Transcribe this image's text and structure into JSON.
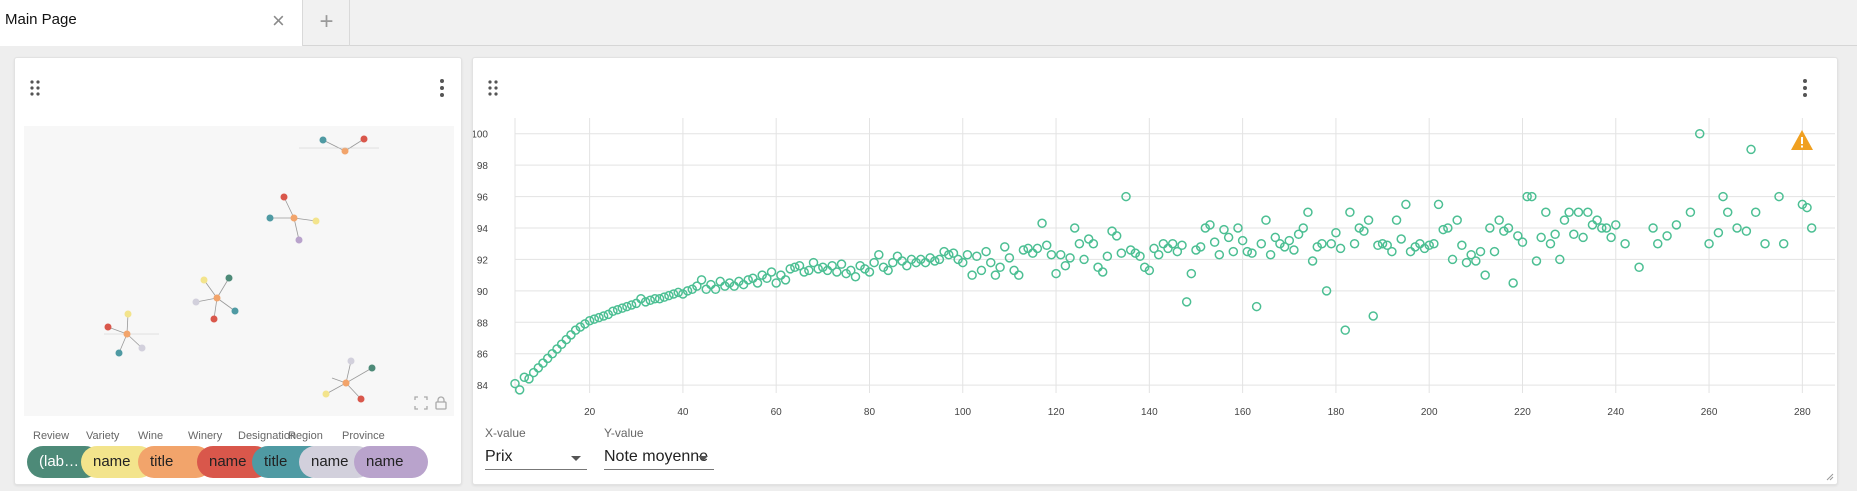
{
  "tabs": {
    "active_title": "Main Page",
    "close_glyph": "×",
    "add_glyph": "+"
  },
  "graph_panel": {
    "legend": [
      {
        "label": "Review",
        "value": "(lab…",
        "color": "#4d8a78"
      },
      {
        "label": "Variety",
        "value": "name",
        "color": "#f3e48c"
      },
      {
        "label": "Wine",
        "value": "title",
        "color": "#f2a46b"
      },
      {
        "label": "Winery",
        "value": "name",
        "color": "#d9574b"
      },
      {
        "label": "Designation",
        "value": "title",
        "color": "#4f9aa3"
      },
      {
        "label": "Region",
        "value": "name",
        "color": "#d2d0dc"
      },
      {
        "label": "Province",
        "value": "name",
        "color": "#b9a3cc"
      }
    ],
    "icons": [
      "fit-screen-icon",
      "lock-icon"
    ]
  },
  "chart_panel": {
    "x_select": {
      "label": "X-value",
      "value": "Prix"
    },
    "y_select": {
      "label": "Y-value",
      "value": "Note moyenne"
    },
    "point_color": "#4cbf93",
    "warning_color": "#f0a020"
  },
  "chart_data": {
    "type": "scatter",
    "title": "",
    "xlabel": "",
    "ylabel": "",
    "xlim": [
      4,
      287
    ],
    "ylim": [
      83.5,
      101
    ],
    "xticks": [
      20,
      40,
      60,
      80,
      100,
      120,
      140,
      160,
      180,
      200,
      220,
      240,
      260,
      280
    ],
    "yticks": [
      84,
      86,
      88,
      90,
      92,
      94,
      96,
      98,
      100
    ],
    "grid": true,
    "series": [
      {
        "points": [
          [
            4,
            84.1
          ],
          [
            5,
            83.7
          ],
          [
            6,
            84.5
          ],
          [
            7,
            84.4
          ],
          [
            8,
            84.8
          ],
          [
            9,
            85.1
          ],
          [
            10,
            85.4
          ],
          [
            11,
            85.7
          ],
          [
            12,
            86.0
          ],
          [
            13,
            86.3
          ],
          [
            14,
            86.6
          ],
          [
            15,
            86.9
          ],
          [
            16,
            87.2
          ],
          [
            17,
            87.5
          ],
          [
            18,
            87.7
          ],
          [
            19,
            87.9
          ],
          [
            20,
            88.1
          ],
          [
            21,
            88.2
          ],
          [
            22,
            88.3
          ],
          [
            23,
            88.4
          ],
          [
            24,
            88.5
          ],
          [
            25,
            88.7
          ],
          [
            26,
            88.8
          ],
          [
            27,
            88.9
          ],
          [
            28,
            89.0
          ],
          [
            29,
            89.1
          ],
          [
            30,
            89.2
          ],
          [
            31,
            89.5
          ],
          [
            32,
            89.3
          ],
          [
            33,
            89.4
          ],
          [
            34,
            89.5
          ],
          [
            35,
            89.5
          ],
          [
            36,
            89.6
          ],
          [
            37,
            89.7
          ],
          [
            38,
            89.8
          ],
          [
            39,
            89.9
          ],
          [
            40,
            89.8
          ],
          [
            41,
            90.0
          ],
          [
            42,
            90.1
          ],
          [
            43,
            90.3
          ],
          [
            44,
            90.7
          ],
          [
            45,
            90.1
          ],
          [
            46,
            90.4
          ],
          [
            47,
            90.1
          ],
          [
            48,
            90.6
          ],
          [
            49,
            90.3
          ],
          [
            50,
            90.5
          ],
          [
            51,
            90.3
          ],
          [
            52,
            90.6
          ],
          [
            53,
            90.4
          ],
          [
            54,
            90.7
          ],
          [
            55,
            90.8
          ],
          [
            56,
            90.5
          ],
          [
            57,
            91.0
          ],
          [
            58,
            90.8
          ],
          [
            59,
            91.2
          ],
          [
            60,
            90.5
          ],
          [
            61,
            91.0
          ],
          [
            62,
            90.7
          ],
          [
            63,
            91.4
          ],
          [
            64,
            91.5
          ],
          [
            65,
            91.6
          ],
          [
            66,
            91.2
          ],
          [
            67,
            91.3
          ],
          [
            68,
            91.8
          ],
          [
            69,
            91.4
          ],
          [
            70,
            91.5
          ],
          [
            71,
            91.3
          ],
          [
            72,
            91.6
          ],
          [
            73,
            91.2
          ],
          [
            74,
            91.7
          ],
          [
            75,
            91.1
          ],
          [
            76,
            91.3
          ],
          [
            77,
            90.9
          ],
          [
            78,
            91.6
          ],
          [
            79,
            91.4
          ],
          [
            80,
            91.2
          ],
          [
            81,
            91.8
          ],
          [
            82,
            92.3
          ],
          [
            83,
            91.5
          ],
          [
            84,
            91.3
          ],
          [
            85,
            91.8
          ],
          [
            86,
            92.2
          ],
          [
            87,
            91.9
          ],
          [
            88,
            91.6
          ],
          [
            89,
            92.0
          ],
          [
            90,
            91.8
          ],
          [
            91,
            92.0
          ],
          [
            92,
            91.8
          ],
          [
            93,
            92.1
          ],
          [
            94,
            91.9
          ],
          [
            95,
            92.0
          ],
          [
            96,
            92.5
          ],
          [
            97,
            92.3
          ],
          [
            98,
            92.4
          ],
          [
            99,
            92.0
          ],
          [
            100,
            91.8
          ],
          [
            101,
            92.3
          ],
          [
            102,
            91.0
          ],
          [
            103,
            92.2
          ],
          [
            104,
            91.3
          ],
          [
            105,
            92.5
          ],
          [
            106,
            91.8
          ],
          [
            107,
            91.0
          ],
          [
            108,
            91.5
          ],
          [
            109,
            92.8
          ],
          [
            110,
            92.1
          ],
          [
            111,
            91.3
          ],
          [
            112,
            91.0
          ],
          [
            113,
            92.6
          ],
          [
            114,
            92.7
          ],
          [
            115,
            92.4
          ],
          [
            116,
            92.7
          ],
          [
            117,
            94.3
          ],
          [
            118,
            92.9
          ],
          [
            119,
            92.3
          ],
          [
            120,
            91.1
          ],
          [
            121,
            92.3
          ],
          [
            122,
            91.6
          ],
          [
            123,
            92.1
          ],
          [
            124,
            94.0
          ],
          [
            125,
            93.0
          ],
          [
            126,
            92.0
          ],
          [
            127,
            93.3
          ],
          [
            128,
            93.0
          ],
          [
            129,
            91.5
          ],
          [
            130,
            91.2
          ],
          [
            131,
            92.2
          ],
          [
            132,
            93.8
          ],
          [
            133,
            93.5
          ],
          [
            134,
            92.4
          ],
          [
            135,
            96.0
          ],
          [
            136,
            92.6
          ],
          [
            137,
            92.4
          ],
          [
            138,
            92.2
          ],
          [
            139,
            91.5
          ],
          [
            140,
            91.3
          ],
          [
            141,
            92.7
          ],
          [
            142,
            92.3
          ],
          [
            143,
            93.0
          ],
          [
            144,
            92.7
          ],
          [
            145,
            93.0
          ],
          [
            146,
            92.5
          ],
          [
            147,
            92.9
          ],
          [
            148,
            89.3
          ],
          [
            149,
            91.1
          ],
          [
            150,
            92.6
          ],
          [
            151,
            92.8
          ],
          [
            152,
            94.0
          ],
          [
            153,
            94.2
          ],
          [
            154,
            93.1
          ],
          [
            155,
            92.3
          ],
          [
            156,
            93.9
          ],
          [
            157,
            93.4
          ],
          [
            158,
            92.5
          ],
          [
            159,
            94.0
          ],
          [
            160,
            93.2
          ],
          [
            161,
            92.5
          ],
          [
            162,
            92.4
          ],
          [
            163,
            89.0
          ],
          [
            164,
            93.0
          ],
          [
            165,
            94.5
          ],
          [
            166,
            92.3
          ],
          [
            167,
            93.4
          ],
          [
            168,
            93.0
          ],
          [
            169,
            92.8
          ],
          [
            170,
            93.2
          ],
          [
            171,
            92.6
          ],
          [
            172,
            93.6
          ],
          [
            173,
            94.0
          ],
          [
            174,
            95.0
          ],
          [
            175,
            91.9
          ],
          [
            176,
            92.8
          ],
          [
            177,
            93.0
          ],
          [
            178,
            90.0
          ],
          [
            179,
            93.0
          ],
          [
            180,
            93.7
          ],
          [
            181,
            92.7
          ],
          [
            182,
            87.5
          ],
          [
            183,
            95.0
          ],
          [
            184,
            93.0
          ],
          [
            185,
            94.0
          ],
          [
            186,
            93.8
          ],
          [
            187,
            94.5
          ],
          [
            188,
            88.4
          ],
          [
            189,
            92.9
          ],
          [
            190,
            93.0
          ],
          [
            191,
            92.9
          ],
          [
            192,
            92.5
          ],
          [
            193,
            94.5
          ],
          [
            194,
            93.3
          ],
          [
            195,
            95.5
          ],
          [
            196,
            92.5
          ],
          [
            197,
            92.8
          ],
          [
            198,
            93.0
          ],
          [
            199,
            92.7
          ],
          [
            200,
            92.9
          ],
          [
            201,
            93.0
          ],
          [
            202,
            95.5
          ],
          [
            203,
            93.9
          ],
          [
            204,
            94.0
          ],
          [
            205,
            92.0
          ],
          [
            206,
            94.5
          ],
          [
            207,
            92.9
          ],
          [
            208,
            91.8
          ],
          [
            209,
            92.3
          ],
          [
            210,
            91.9
          ],
          [
            211,
            92.5
          ],
          [
            212,
            91.0
          ],
          [
            213,
            94.0
          ],
          [
            214,
            92.5
          ],
          [
            215,
            94.5
          ],
          [
            216,
            93.8
          ],
          [
            217,
            94.0
          ],
          [
            218,
            90.5
          ],
          [
            219,
            93.5
          ],
          [
            220,
            93.1
          ],
          [
            221,
            96.0
          ],
          [
            222,
            96.0
          ],
          [
            223,
            91.9
          ],
          [
            224,
            93.4
          ],
          [
            225,
            95.0
          ],
          [
            226,
            93.0
          ],
          [
            227,
            93.6
          ],
          [
            228,
            92.0
          ],
          [
            229,
            94.5
          ],
          [
            230,
            95.0
          ],
          [
            231,
            93.6
          ],
          [
            232,
            95.0
          ],
          [
            233,
            93.4
          ],
          [
            234,
            95.0
          ],
          [
            235,
            94.2
          ],
          [
            236,
            94.5
          ],
          [
            237,
            94.0
          ],
          [
            238,
            94.0
          ],
          [
            239,
            93.4
          ],
          [
            240,
            94.2
          ],
          [
            242,
            93.0
          ],
          [
            245,
            91.5
          ],
          [
            248,
            94.0
          ],
          [
            249,
            93.0
          ],
          [
            251,
            93.5
          ],
          [
            253,
            94.2
          ],
          [
            256,
            95.0
          ],
          [
            258,
            100.0
          ],
          [
            260,
            93.0
          ],
          [
            262,
            93.7
          ],
          [
            263,
            96.0
          ],
          [
            264,
            95.0
          ],
          [
            266,
            94.0
          ],
          [
            268,
            93.8
          ],
          [
            269,
            99.0
          ],
          [
            270,
            95.0
          ],
          [
            272,
            93.0
          ],
          [
            275,
            96.0
          ],
          [
            276,
            93.0
          ],
          [
            280,
            95.5
          ],
          [
            281,
            95.3
          ],
          [
            282,
            94.0
          ]
        ]
      }
    ]
  }
}
